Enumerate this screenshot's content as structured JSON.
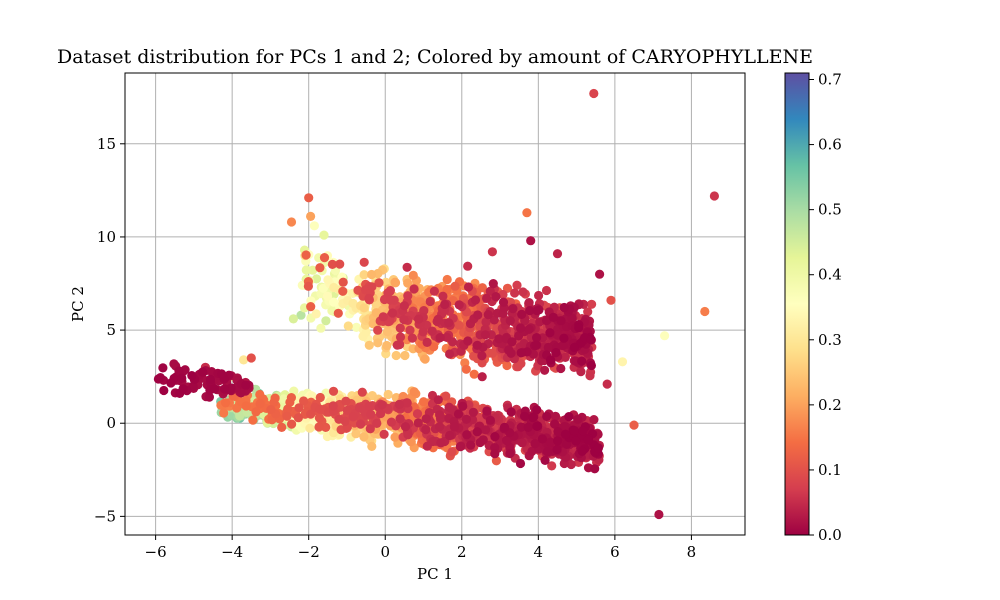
{
  "chart_data": {
    "type": "scatter",
    "title": "Dataset distribution for PCs 1 and 2; Colored by amount of CARYOPHYLLENE",
    "xlabel": "PC 1",
    "ylabel": "PC 2",
    "xlim": [
      -6.8,
      9.4
    ],
    "ylim": [
      -6.0,
      18.8
    ],
    "xticks": [
      -6,
      -4,
      -2,
      0,
      2,
      4,
      6,
      8
    ],
    "yticks": [
      -5,
      0,
      5,
      10,
      15
    ],
    "xtick_labels": [
      "−6",
      "−4",
      "−2",
      "0",
      "2",
      "4",
      "6",
      "8"
    ],
    "ytick_labels": [
      "−5",
      "0",
      "5",
      "10",
      "15"
    ],
    "grid": true,
    "colorbar": {
      "colormap": "Spectral",
      "range": [
        0.0,
        0.71
      ],
      "ticks": [
        0.0,
        0.1,
        0.2,
        0.3,
        0.4,
        0.5,
        0.6,
        0.7
      ],
      "tick_labels": [
        "0.0",
        "0.1",
        "0.2",
        "0.3",
        "0.4",
        "0.5",
        "0.6",
        "0.7"
      ],
      "colors": [
        "#9e0142",
        "#d53e4f",
        "#f46d43",
        "#fdae61",
        "#fee08b",
        "#ffffbf",
        "#e6f598",
        "#abdda4",
        "#66c2a5",
        "#3288bd",
        "#5e4fa2"
      ]
    },
    "clusters": [
      {
        "kind": "band",
        "x": [
          -4.3,
          5.6
        ],
        "y_top": [
          1.8,
          2.2,
          0.6
        ],
        "y_bottom": [
          0.2,
          -1.8,
          -2.8
        ],
        "n": 1600,
        "seed": 11,
        "value_stops": [
          [
            -4.3,
            0.52
          ],
          [
            -3.2,
            0.48
          ],
          [
            -2.0,
            0.36
          ],
          [
            -0.8,
            0.28
          ],
          [
            0.5,
            0.2
          ],
          [
            2.0,
            0.1
          ],
          [
            3.5,
            0.06
          ],
          [
            5.6,
            0.03
          ]
        ],
        "value_noise": 0.06
      },
      {
        "kind": "band",
        "x": [
          -0.6,
          5.4
        ],
        "y_top": [
          9.4,
          8.6,
          7.0
        ],
        "y_bottom": [
          3.2,
          2.0,
          2.0
        ],
        "n": 1000,
        "seed": 23,
        "value_stops": [
          [
            -0.6,
            0.3
          ],
          [
            0.5,
            0.22
          ],
          [
            2.0,
            0.14
          ],
          [
            3.5,
            0.07
          ],
          [
            5.4,
            0.04
          ]
        ],
        "value_noise": 0.06
      },
      {
        "kind": "band",
        "x": [
          -6.0,
          -3.5
        ],
        "y_top": [
          4.2,
          3.6,
          2.6
        ],
        "y_bottom": [
          1.2,
          1.0,
          1.4
        ],
        "n": 90,
        "seed": 37,
        "value_stops": [
          [
            -6.0,
            0.0
          ],
          [
            -3.5,
            0.02
          ]
        ],
        "value_noise": 0.01
      },
      {
        "kind": "band",
        "x": [
          -2.2,
          -0.5
        ],
        "y_top": [
          10.5,
          9.6,
          8.6
        ],
        "y_bottom": [
          4.8,
          4.6,
          4.6
        ],
        "n": 90,
        "seed": 41,
        "value_stops": [
          [
            -2.2,
            0.42
          ],
          [
            -1.2,
            0.36
          ],
          [
            -0.5,
            0.3
          ]
        ],
        "value_noise": 0.08
      }
    ],
    "points": [
      {
        "x": 5.45,
        "y": 17.7,
        "v": 0.08
      },
      {
        "x": 8.6,
        "y": 12.2,
        "v": 0.06
      },
      {
        "x": 3.7,
        "y": 11.3,
        "v": 0.15
      },
      {
        "x": 8.35,
        "y": 6.0,
        "v": 0.16
      },
      {
        "x": 7.3,
        "y": 4.7,
        "v": 0.36
      },
      {
        "x": 6.2,
        "y": 3.3,
        "v": 0.33
      },
      {
        "x": 6.5,
        "y": -0.1,
        "v": 0.12
      },
      {
        "x": 7.15,
        "y": -4.9,
        "v": 0.02
      },
      {
        "x": 5.8,
        "y": 2.1,
        "v": 0.05
      },
      {
        "x": 5.9,
        "y": 6.6,
        "v": 0.1
      },
      {
        "x": 5.6,
        "y": 8.0,
        "v": 0.02
      },
      {
        "x": -2.0,
        "y": 12.1,
        "v": 0.12
      },
      {
        "x": -2.45,
        "y": 10.8,
        "v": 0.17
      },
      {
        "x": -2.1,
        "y": 9.0,
        "v": 0.28
      },
      {
        "x": -1.6,
        "y": 10.1,
        "v": 0.42
      },
      {
        "x": -1.95,
        "y": 11.1,
        "v": 0.2
      },
      {
        "x": -1.85,
        "y": 10.6,
        "v": 0.36
      },
      {
        "x": -1.65,
        "y": 7.3,
        "v": 0.4
      },
      {
        "x": -2.4,
        "y": 5.6,
        "v": 0.44
      },
      {
        "x": -2.2,
        "y": 5.8,
        "v": 0.48
      },
      {
        "x": -1.55,
        "y": 5.5,
        "v": 0.45
      },
      {
        "x": -4.7,
        "y": 3.0,
        "v": 0.05
      },
      {
        "x": -3.7,
        "y": 3.4,
        "v": 0.3
      },
      {
        "x": -4.5,
        "y": 2.7,
        "v": 0.44
      },
      {
        "x": -4.0,
        "y": 2.5,
        "v": 0.4
      },
      {
        "x": -3.5,
        "y": 3.5,
        "v": 0.1
      },
      {
        "x": -3.8,
        "y": 1.3,
        "v": 0.58
      },
      {
        "x": -3.5,
        "y": 1.1,
        "v": 0.6
      },
      {
        "x": -3.3,
        "y": 1.6,
        "v": 0.57
      },
      {
        "x": -3.0,
        "y": 0.9,
        "v": 0.55
      },
      {
        "x": -2.7,
        "y": 1.4,
        "v": 0.5
      },
      {
        "x": -1.1,
        "y": 7.8,
        "v": 0.45
      },
      {
        "x": -1.3,
        "y": 8.2,
        "v": 0.38
      },
      {
        "x": 2.8,
        "y": 9.2,
        "v": 0.06
      },
      {
        "x": 3.8,
        "y": 9.8,
        "v": 0.02
      },
      {
        "x": 4.5,
        "y": 9.1,
        "v": 0.04
      }
    ]
  }
}
